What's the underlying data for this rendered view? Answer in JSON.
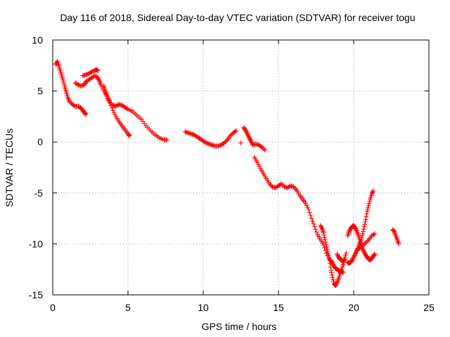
{
  "chart_data": {
    "type": "scatter",
    "title": "Day 116 of 2018, Sidereal Day-to-day VTEC variation (SDTVAR) for receiver togu",
    "xlabel": "GPS time / hours",
    "ylabel": "SDTVAR / TECUs",
    "xlim": [
      0,
      25
    ],
    "ylim": [
      -15,
      10
    ],
    "xticks": [
      0,
      5,
      10,
      15,
      20,
      25
    ],
    "yticks": [
      -15,
      -10,
      -5,
      0,
      5,
      10
    ],
    "grid": true,
    "marker": "+",
    "series": [
      {
        "name": "SDTVAR",
        "color": "#ff0000",
        "segments": [
          [
            [
              0.2,
              7.6
            ],
            [
              0.3,
              7.9
            ],
            [
              0.4,
              7.5
            ],
            [
              0.5,
              7.0
            ],
            [
              0.6,
              6.5
            ],
            [
              0.7,
              6.0
            ],
            [
              0.8,
              5.4
            ],
            [
              0.9,
              4.9
            ],
            [
              1.0,
              4.4
            ],
            [
              1.1,
              4.0
            ],
            [
              1.3,
              3.7
            ],
            [
              1.5,
              3.5
            ],
            [
              1.7,
              3.5
            ],
            [
              1.9,
              3.3
            ],
            [
              2.0,
              3.1
            ],
            [
              2.1,
              2.9
            ],
            [
              2.2,
              2.7
            ]
          ],
          [
            [
              1.5,
              5.8
            ],
            [
              1.7,
              5.6
            ],
            [
              1.9,
              5.5
            ],
            [
              2.1,
              5.6
            ],
            [
              2.2,
              5.9
            ],
            [
              2.4,
              6.1
            ],
            [
              2.6,
              6.3
            ],
            [
              2.8,
              6.5
            ],
            [
              3.0,
              6.3
            ],
            [
              3.1,
              6.0
            ],
            [
              3.2,
              5.6
            ],
            [
              3.4,
              5.0
            ],
            [
              3.6,
              4.5
            ],
            [
              3.8,
              3.8
            ],
            [
              4.0,
              3.1
            ],
            [
              4.2,
              2.5
            ],
            [
              4.4,
              2.0
            ],
            [
              4.6,
              1.6
            ],
            [
              4.8,
              1.2
            ],
            [
              5.0,
              0.8
            ],
            [
              5.1,
              0.6
            ]
          ],
          [
            [
              2.0,
              6.5
            ],
            [
              2.2,
              6.6
            ],
            [
              2.4,
              6.7
            ],
            [
              2.6,
              6.9
            ],
            [
              2.8,
              7.0
            ],
            [
              2.9,
              7.1
            ],
            [
              3.0,
              7.0
            ]
          ],
          [
            [
              3.4,
              5.5
            ],
            [
              3.5,
              5.0
            ],
            [
              3.6,
              4.6
            ],
            [
              3.7,
              4.2
            ],
            [
              3.8,
              3.9
            ],
            [
              4.0,
              3.6
            ],
            [
              4.2,
              3.5
            ],
            [
              4.4,
              3.7
            ],
            [
              4.6,
              3.6
            ],
            [
              4.8,
              3.4
            ],
            [
              5.0,
              3.2
            ],
            [
              5.3,
              3.0
            ],
            [
              5.6,
              2.6
            ],
            [
              5.9,
              2.2
            ],
            [
              6.2,
              1.6
            ],
            [
              6.5,
              1.1
            ],
            [
              6.8,
              0.7
            ],
            [
              7.1,
              0.4
            ],
            [
              7.4,
              0.2
            ],
            [
              7.6,
              0.2
            ]
          ],
          [
            [
              8.8,
              1.0
            ],
            [
              9.0,
              0.9
            ],
            [
              9.2,
              0.8
            ],
            [
              9.4,
              0.7
            ],
            [
              9.6,
              0.5
            ],
            [
              9.8,
              0.3
            ],
            [
              10.0,
              0.1
            ],
            [
              10.2,
              -0.1
            ],
            [
              10.4,
              -0.2
            ],
            [
              10.6,
              -0.3
            ],
            [
              10.8,
              -0.4
            ],
            [
              11.0,
              -0.4
            ],
            [
              11.2,
              -0.3
            ],
            [
              11.4,
              -0.1
            ],
            [
              11.6,
              0.2
            ],
            [
              11.8,
              0.6
            ],
            [
              12.0,
              0.9
            ],
            [
              12.2,
              1.1
            ]
          ],
          [
            [
              12.5,
              -0.1
            ]
          ],
          [
            [
              12.7,
              1.4
            ],
            [
              12.8,
              1.2
            ],
            [
              12.9,
              0.9
            ],
            [
              13.0,
              0.6
            ],
            [
              13.1,
              0.3
            ],
            [
              13.2,
              0.0
            ],
            [
              13.3,
              -0.3
            ],
            [
              13.5,
              -0.2
            ],
            [
              13.7,
              -0.3
            ],
            [
              13.9,
              -0.5
            ],
            [
              14.1,
              -0.8
            ]
          ],
          [
            [
              13.4,
              -1.5
            ],
            [
              13.6,
              -2.0
            ],
            [
              13.8,
              -2.6
            ],
            [
              14.0,
              -3.1
            ],
            [
              14.2,
              -3.6
            ],
            [
              14.4,
              -4.1
            ],
            [
              14.6,
              -4.4
            ],
            [
              14.8,
              -4.5
            ],
            [
              15.0,
              -4.3
            ],
            [
              15.2,
              -4.1
            ],
            [
              15.4,
              -4.4
            ],
            [
              15.6,
              -4.5
            ],
            [
              15.8,
              -4.3
            ],
            [
              16.0,
              -4.4
            ],
            [
              16.2,
              -4.7
            ],
            [
              16.4,
              -5.2
            ],
            [
              16.6,
              -5.6
            ],
            [
              16.8,
              -6.0
            ],
            [
              17.0,
              -6.6
            ],
            [
              17.2,
              -7.5
            ],
            [
              17.4,
              -8.3
            ],
            [
              17.6,
              -9.1
            ],
            [
              17.8,
              -9.6
            ],
            [
              18.0,
              -10.1
            ],
            [
              18.2,
              -10.9
            ],
            [
              18.4,
              -11.6
            ],
            [
              18.5,
              -12.6
            ],
            [
              18.6,
              -13.3
            ],
            [
              18.7,
              -13.9
            ],
            [
              18.8,
              -14.1
            ],
            [
              18.9,
              -13.8
            ],
            [
              19.0,
              -13.4
            ],
            [
              19.1,
              -12.9
            ],
            [
              19.2,
              -12.5
            ],
            [
              19.3,
              -12.0
            ],
            [
              19.4,
              -11.5
            ],
            [
              19.5,
              -10.9
            ]
          ],
          [
            [
              17.8,
              -8.2
            ],
            [
              17.9,
              -8.5
            ],
            [
              18.0,
              -8.9
            ],
            [
              18.1,
              -9.6
            ],
            [
              18.2,
              -10.3
            ],
            [
              18.3,
              -11.0
            ],
            [
              18.4,
              -11.5
            ],
            [
              18.5,
              -11.7
            ],
            [
              18.6,
              -11.9
            ],
            [
              18.7,
              -12.2
            ],
            [
              18.8,
              -12.4
            ],
            [
              18.9,
              -12.5
            ],
            [
              19.0,
              -12.6
            ],
            [
              19.1,
              -12.7
            ],
            [
              19.2,
              -12.7
            ],
            [
              19.3,
              -12.8
            ]
          ],
          [
            [
              18.9,
              -11.0
            ],
            [
              19.0,
              -11.3
            ],
            [
              19.1,
              -11.5
            ],
            [
              19.2,
              -11.6
            ],
            [
              19.3,
              -11.7
            ],
            [
              19.4,
              -11.5
            ]
          ],
          [
            [
              19.6,
              -11.8
            ],
            [
              19.7,
              -11.9
            ],
            [
              19.8,
              -11.8
            ],
            [
              19.9,
              -11.6
            ],
            [
              20.0,
              -11.3
            ],
            [
              20.1,
              -11.0
            ],
            [
              20.2,
              -10.7
            ],
            [
              20.3,
              -10.4
            ],
            [
              20.4,
              -10.0
            ],
            [
              20.5,
              -9.6
            ],
            [
              20.6,
              -9.0
            ],
            [
              20.7,
              -8.3
            ],
            [
              20.8,
              -7.6
            ],
            [
              20.9,
              -6.8
            ],
            [
              21.0,
              -6.2
            ],
            [
              21.1,
              -5.6
            ],
            [
              21.2,
              -5.1
            ],
            [
              21.3,
              -4.8
            ]
          ],
          [
            [
              19.6,
              -9.2
            ],
            [
              19.7,
              -8.8
            ],
            [
              19.8,
              -8.5
            ],
            [
              19.9,
              -8.3
            ],
            [
              20.0,
              -8.2
            ],
            [
              20.1,
              -8.4
            ],
            [
              20.2,
              -8.7
            ],
            [
              20.3,
              -9.1
            ],
            [
              20.4,
              -9.6
            ],
            [
              20.5,
              -10.1
            ],
            [
              20.6,
              -10.5
            ],
            [
              20.7,
              -10.8
            ],
            [
              20.8,
              -11.1
            ],
            [
              20.9,
              -11.3
            ],
            [
              21.0,
              -11.5
            ],
            [
              21.1,
              -11.6
            ],
            [
              21.2,
              -11.4
            ],
            [
              21.3,
              -11.2
            ],
            [
              21.4,
              -11.0
            ]
          ],
          [
            [
              20.2,
              -10.6
            ],
            [
              20.4,
              -10.4
            ],
            [
              20.6,
              -10.2
            ],
            [
              20.8,
              -9.9
            ],
            [
              21.0,
              -9.6
            ],
            [
              21.2,
              -9.2
            ],
            [
              21.4,
              -9.0
            ]
          ],
          [
            [
              22.6,
              -8.6
            ],
            [
              22.7,
              -8.8
            ],
            [
              22.8,
              -9.2
            ],
            [
              22.9,
              -9.6
            ],
            [
              23.0,
              -10.0
            ]
          ]
        ]
      }
    ]
  }
}
